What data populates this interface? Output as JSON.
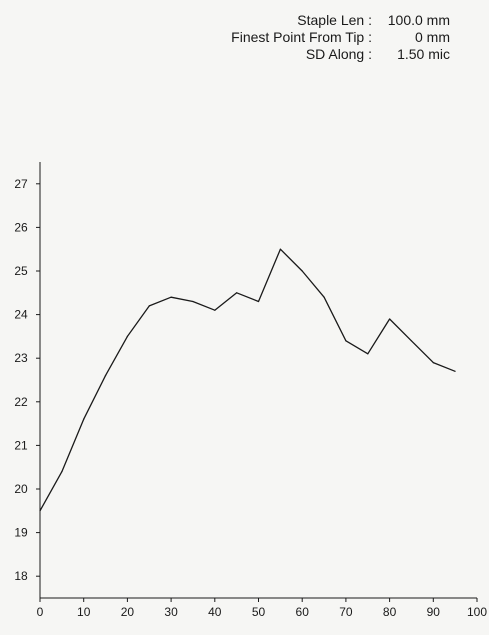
{
  "stats": [
    {
      "label": "Staple Len :",
      "value": "100.0 mm"
    },
    {
      "label": "Finest Point From Tip :",
      "value": "0 mm"
    },
    {
      "label": "SD Along :",
      "value": "1.50 mic"
    }
  ],
  "chart_data": {
    "type": "line",
    "title": "",
    "xlabel": "",
    "ylabel": "",
    "xlim": [
      0,
      100
    ],
    "ylim": [
      17.5,
      27.5
    ],
    "x_ticks": [
      0,
      10,
      20,
      30,
      40,
      50,
      60,
      70,
      80,
      90,
      100
    ],
    "y_ticks": [
      18,
      19,
      20,
      21,
      22,
      23,
      24,
      25,
      26,
      27
    ],
    "grid": false,
    "series": [
      {
        "x": [
          0,
          5,
          10,
          15,
          20,
          25,
          30,
          35,
          40,
          45,
          50,
          55,
          60,
          65,
          70,
          75,
          80,
          85,
          90,
          95
        ],
        "y": [
          19.5,
          20.4,
          21.6,
          22.6,
          23.5,
          24.2,
          24.4,
          24.3,
          24.1,
          24.5,
          24.3,
          25.5,
          25.0,
          24.4,
          23.4,
          23.1,
          23.9,
          23.4,
          22.9,
          22.7
        ]
      }
    ],
    "line_color": "#1a1a1a"
  }
}
